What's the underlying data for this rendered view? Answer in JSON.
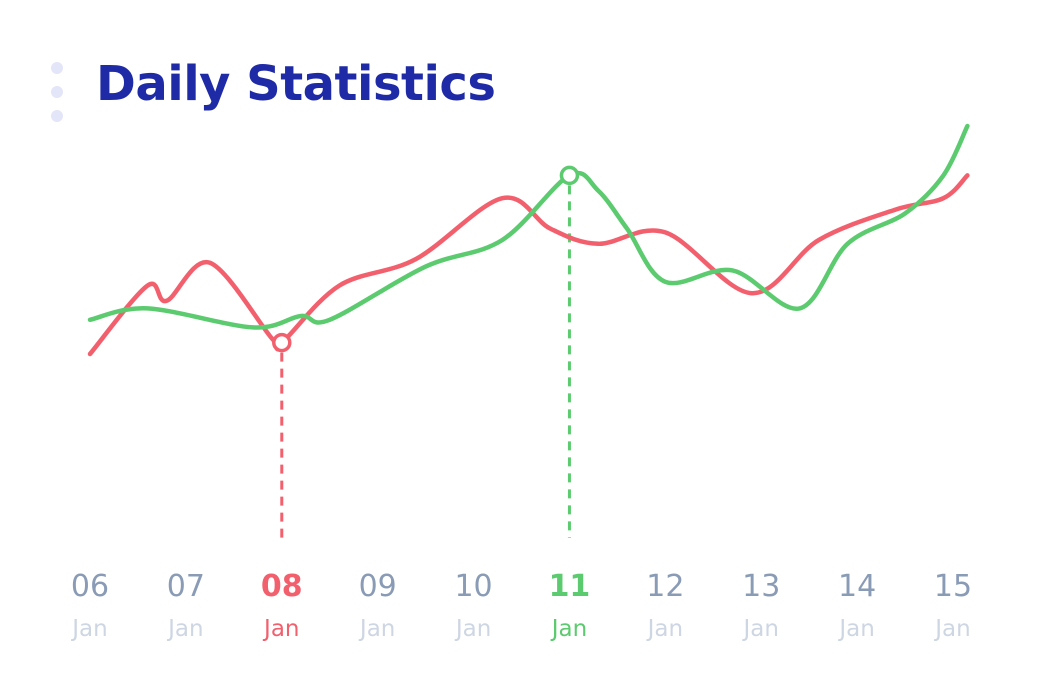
{
  "header": {
    "title": "Daily Statistics",
    "menu_icon": "vertical-dots-icon"
  },
  "chart_data": {
    "type": "line",
    "title": "Daily Statistics",
    "xlabel": "",
    "ylabel": "",
    "grid": false,
    "legend": "none",
    "x": [
      6,
      7,
      8,
      9,
      10,
      11,
      12,
      13,
      14,
      15
    ],
    "ticks": [
      {
        "day": "06",
        "month": "Jan"
      },
      {
        "day": "07",
        "month": "Jan"
      },
      {
        "day": "08",
        "month": "Jan"
      },
      {
        "day": "09",
        "month": "Jan"
      },
      {
        "day": "10",
        "month": "Jan"
      },
      {
        "day": "11",
        "month": "Jan"
      },
      {
        "day": "12",
        "month": "Jan"
      },
      {
        "day": "13",
        "month": "Jan"
      },
      {
        "day": "14",
        "month": "Jan"
      },
      {
        "day": "15",
        "month": "Jan"
      }
    ],
    "xlim": [
      5.9,
      15.1
    ],
    "ylim": [
      0,
      100
    ],
    "series": [
      {
        "color": "#f2606e",
        "points": [
          [
            6.0,
            40
          ],
          [
            6.6,
            58
          ],
          [
            6.8,
            54
          ],
          [
            7.25,
            64
          ],
          [
            7.9,
            44
          ],
          [
            8.0,
            43
          ],
          [
            8.6,
            58
          ],
          [
            9.4,
            65
          ],
          [
            10.3,
            81
          ],
          [
            10.8,
            73
          ],
          [
            11.3,
            69
          ],
          [
            12.0,
            72
          ],
          [
            12.9,
            56
          ],
          [
            13.6,
            70
          ],
          [
            14.4,
            78
          ],
          [
            14.9,
            81
          ],
          [
            15.15,
            87
          ]
        ],
        "highlight": {
          "x": 8.0,
          "y": 43,
          "tick_index": 2
        }
      },
      {
        "color": "#5ccb6f",
        "points": [
          [
            6.0,
            49
          ],
          [
            6.6,
            52
          ],
          [
            7.7,
            47
          ],
          [
            8.2,
            50
          ],
          [
            8.5,
            49
          ],
          [
            9.5,
            63
          ],
          [
            10.3,
            70
          ],
          [
            11.0,
            87
          ],
          [
            11.3,
            83
          ],
          [
            11.6,
            73
          ],
          [
            12.0,
            59
          ],
          [
            12.7,
            62
          ],
          [
            13.4,
            52
          ],
          [
            13.9,
            69
          ],
          [
            14.5,
            77
          ],
          [
            14.9,
            87
          ],
          [
            15.15,
            100
          ]
        ],
        "highlight": {
          "x": 11.0,
          "y": 87,
          "tick_index": 5
        }
      }
    ]
  }
}
